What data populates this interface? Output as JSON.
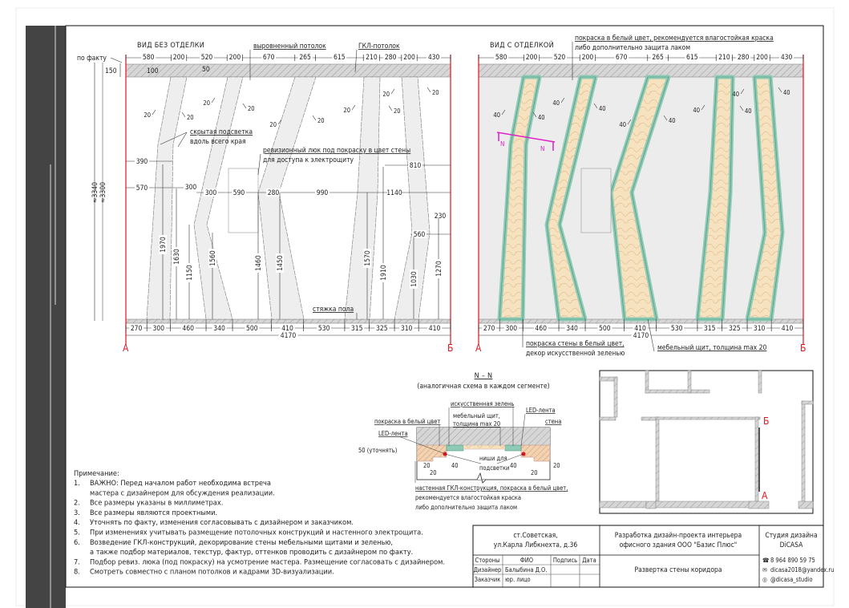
{
  "view_plain": {
    "title": "ВИД БЕЗ ОТДЕЛКИ",
    "top_dims": [
      "580",
      "200",
      "520",
      "200",
      "670",
      "265",
      "615",
      "210",
      "280",
      "200",
      "430"
    ],
    "bottom_dims": [
      "270",
      "300",
      "460",
      "340",
      "500",
      "410",
      "530",
      "315",
      "325",
      "310",
      "410"
    ],
    "total": "4170",
    "section_start": "А",
    "section_end": "Б",
    "side": {
      "as_built": "по факту",
      "ceiling_h": "150",
      "height_outer": "≈3340",
      "height_inner": "≈3300"
    },
    "ceiling_detail": {
      "drop": "100",
      "step": "50"
    },
    "gap_label": "20",
    "labels": {
      "leveled_ceiling": "выровненный потолок",
      "gkl_ceiling": "ГКЛ-потолок",
      "hidden_light_1": "скрытая подсветка",
      "hidden_light_2": "вдоль всего края",
      "hatch_1": "ревизионный люк под покраску в цвет стены",
      "hatch_2": "для доступа к электрощиту",
      "floor_screed": "стяжка пола"
    },
    "horizontal_dims": [
      "390",
      "570",
      "300",
      "300",
      "590",
      "280",
      "990",
      "1140",
      "810",
      "230",
      "560"
    ],
    "vertical_dims": [
      "1970",
      "1630",
      "1150",
      "1560",
      "1460",
      "1450",
      "1570",
      "1910",
      "1030",
      "1270"
    ]
  },
  "view_finished": {
    "title": "ВИД С ОТДЕЛКОЙ",
    "top_dims": [
      "580",
      "200",
      "520",
      "200",
      "670",
      "265",
      "615",
      "210",
      "280",
      "200",
      "430"
    ],
    "bottom_dims": [
      "270",
      "300",
      "460",
      "340",
      "500",
      "410",
      "530",
      "315",
      "325",
      "310",
      "410"
    ],
    "total": "4170",
    "section_start": "А",
    "section_end": "Б",
    "gap_label": "40",
    "section_mark": "N",
    "labels": {
      "paint_1": "покраска в белый цвет, рекомендуется влагостойкая краска",
      "paint_2": "либо дополнительно защита лаком",
      "wall_1": "покраска стены в белый цвет,",
      "wall_2": "декор искусственной зеленью",
      "panel": "мебельный щит, толщина max 20"
    },
    "colors": {
      "wood": "#f6e2bf",
      "greenery": "#8fcab5",
      "greenery_edge": "#3f8f78",
      "section_line": "#e020c8",
      "axis": "#e0141e"
    }
  },
  "section_nn": {
    "title": "N – N",
    "subtitle": "(аналогичная схема в каждом сегменте)",
    "labels": {
      "greenery": "искусственная зелень",
      "panel_1": "мебельный щит,",
      "panel_2": "толщина max 20",
      "paint": "покраска в белый цвет",
      "led_left": "LED-лента",
      "led_right": "LED-лента",
      "wall": "стена",
      "depth": "50 (уточнять)",
      "niche_1": "ниши для",
      "niche_2": "подсветки",
      "gkl_1": "настенная ГКЛ-конструкция, покраска в белый цвет,",
      "gkl_2": "рекомендуется влагостойкая краска",
      "gkl_3": "либо дополнительно защита лаком"
    },
    "dims": {
      "d20": "20",
      "d40": "40"
    }
  },
  "plan": {
    "mark_start": "А",
    "mark_end": "Б"
  },
  "notes": {
    "heading": "Примечание:",
    "items": [
      {
        "num": "1.",
        "lines": [
          "ВАЖНО: Перед началом работ необходима встреча",
          "мастера с дизайнером для обсуждения реализации."
        ]
      },
      {
        "num": "2.",
        "lines": [
          "Все размеры указаны в миллиметрах."
        ]
      },
      {
        "num": "3.",
        "lines": [
          "Все размеры являются проектными."
        ]
      },
      {
        "num": "4.",
        "lines": [
          "Уточнять по факту, изменения согласовывать с дизайнером и заказчиком."
        ]
      },
      {
        "num": "5.",
        "lines": [
          "При изменениях учитывать размещение потолочных конструкций и настенного электрощита."
        ]
      },
      {
        "num": "6.",
        "lines": [
          "Возведение ГКЛ-конструкций, декорирование стены мебельными щитами и зеленью,",
          "а также подбор материалов, текстур, фактур, оттенков проводить с дизайнером по факту."
        ]
      },
      {
        "num": "7.",
        "lines": [
          "Подбор ревиз. люка (под покраску) на усмотрение мастера. Размещение согласовать с дизайнером."
        ]
      },
      {
        "num": "8.",
        "lines": [
          "Смотреть совместно с планом потолков и кадрами 3D-визуализации."
        ]
      }
    ]
  },
  "title_block": {
    "address_1": "ст.Советская,",
    "address_2": "ул.Карла Либкнехта, д.36",
    "project_1": "Разработка дизайн-проекта интерьера",
    "project_2": "офисного здания ООО \"Базис Плюс\"",
    "studio_1": "Студия дизайна",
    "studio_2": "DiCASA",
    "headers": {
      "party": "Стороны",
      "name": "ФИО",
      "signature": "Подпись",
      "date": "Дата"
    },
    "rows": [
      {
        "party": "Дизайнер",
        "name": "Балыбина Д.О."
      },
      {
        "party": "Заказчик",
        "name": "юр. лицо"
      }
    ],
    "sheet_name": "Развертка стены коридора",
    "contacts": {
      "phone": "8 964 890 59 75",
      "email": "dicasa2018@yandex.ru",
      "instagram": "@dicasa_studio"
    }
  }
}
